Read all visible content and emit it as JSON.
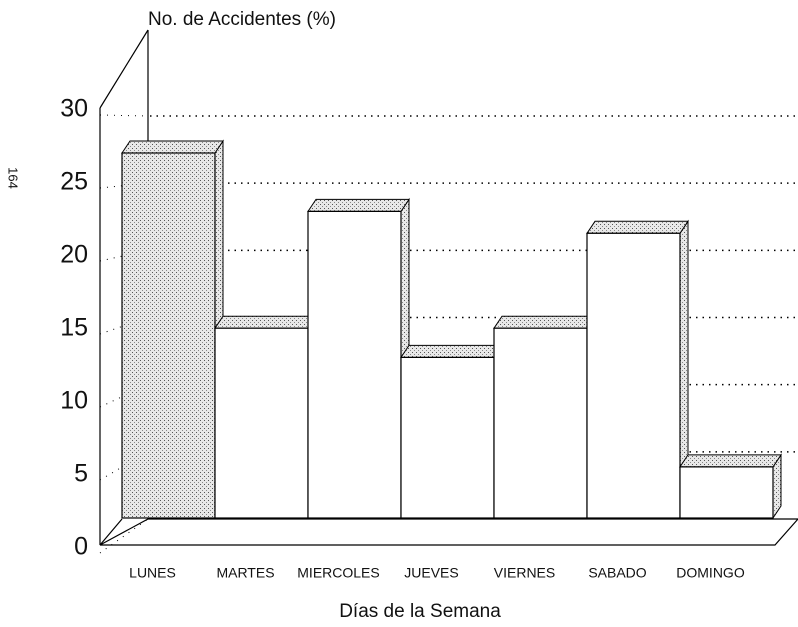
{
  "page_number": "164",
  "chart_data": {
    "type": "bar3d",
    "title": "No. de Accidentes (%)",
    "x_label": "Días de la Semana",
    "categories": [
      "LUNES",
      "MARTES",
      "MIERCOLES",
      "JUEVES",
      "VIERNES",
      "SABADO",
      "DOMINGO"
    ],
    "values": [
      25,
      13,
      21,
      11,
      13,
      19.5,
      3.5
    ],
    "color": "#ffffff",
    "ylim": [
      0,
      30
    ],
    "yticks": [
      0,
      5,
      10,
      15,
      20,
      25,
      30
    ],
    "grid": true
  }
}
